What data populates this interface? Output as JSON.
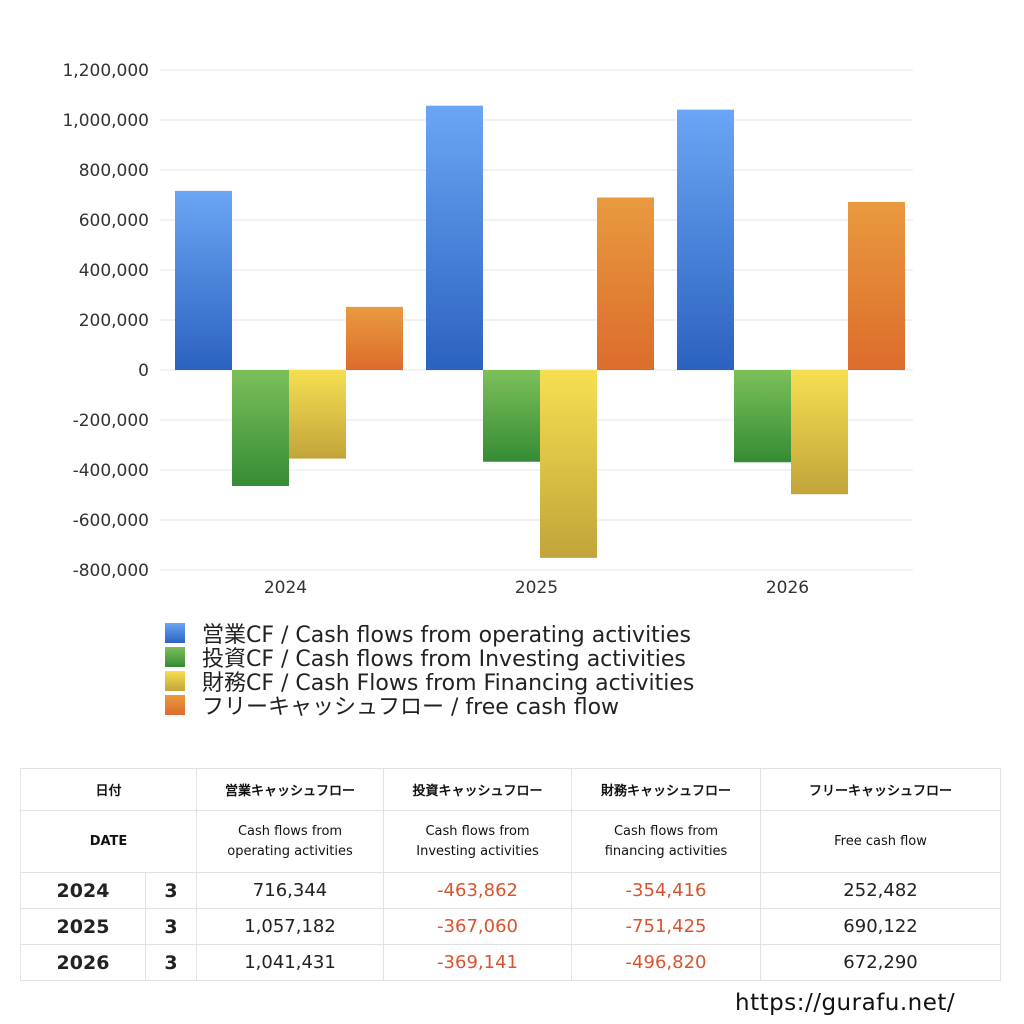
{
  "chart_data": {
    "type": "bar",
    "categories": [
      "2024",
      "2025",
      "2026"
    ],
    "series": [
      {
        "name": "営業CF / Cash flows from operating activities",
        "values": [
          716344,
          1057182,
          1041431
        ],
        "color_top": "#6aa6f4",
        "color_bottom": "#2b62c0"
      },
      {
        "name": "投資CF / Cash flows from Investing activities",
        "values": [
          -463862,
          -367060,
          -369141
        ],
        "color_top": "#7cc05a",
        "color_bottom": "#358c35"
      },
      {
        "name": "財務CF / Cash Flows from Financing activities",
        "values": [
          -354416,
          -751425,
          -496820
        ],
        "color_top": "#f6df52",
        "color_bottom": "#c2a43a"
      },
      {
        "name": "フリーキャッシュフロー / free cash flow",
        "values": [
          252482,
          690122,
          672290
        ],
        "color_top": "#e99a3f",
        "color_bottom": "#dc6c2c"
      }
    ],
    "yticks": [
      "1,200,000",
      "1,000,000",
      "800,000",
      "600,000",
      "400,000",
      "200,000",
      "0",
      "-200,000",
      "-400,000",
      "-600,000",
      "-800,000"
    ],
    "ylim": [
      -800000,
      1200000
    ],
    "grid": true,
    "legend_position": "bottom-left"
  },
  "table": {
    "header_ja": {
      "date": "日付",
      "operating": "営業キャッシュフロー",
      "investing": "投資キャッシュフロー",
      "financing": "財務キャッシュフロー",
      "free": "フリーキャッシュフロー"
    },
    "header_en": {
      "date": "DATE",
      "operating_1": "Cash flows from",
      "operating_2": "operating activities",
      "investing_1": "Cash flows from",
      "investing_2": "Investing activities",
      "financing_1": "Cash flows from",
      "financing_2": "financing activities",
      "free": "Free cash flow"
    },
    "rows": [
      {
        "year": "2024",
        "month": "3",
        "operating": "716,344",
        "investing": "-463,862",
        "financing": "-354,416",
        "free": "252,482"
      },
      {
        "year": "2025",
        "month": "3",
        "operating": "1,057,182",
        "investing": "-367,060",
        "financing": "-751,425",
        "free": "690,122"
      },
      {
        "year": "2026",
        "month": "3",
        "operating": "1,041,431",
        "investing": "-369,141",
        "financing": "-496,820",
        "free": "672,290"
      }
    ],
    "negative_color": "#d9542e"
  },
  "brand": "https://gurafu.net/"
}
